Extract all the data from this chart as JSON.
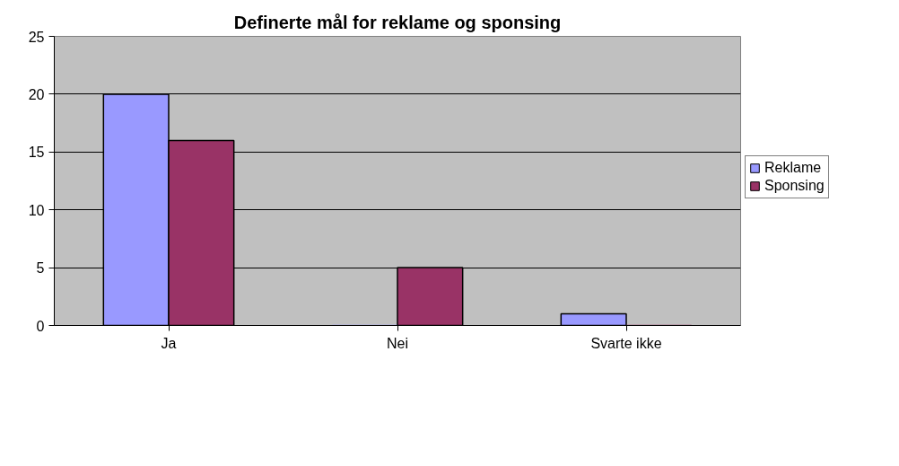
{
  "chart_data": {
    "type": "bar",
    "title": "Definerte mål for reklame og sponsing",
    "categories": [
      "Ja",
      "Nei",
      "Svarte ikke"
    ],
    "series": [
      {
        "name": "Reklame",
        "color": "#9999ff",
        "values": [
          20,
          0,
          1
        ]
      },
      {
        "name": "Sponsing",
        "color": "#993366",
        "values": [
          16,
          5,
          0
        ]
      }
    ],
    "ylim": [
      0,
      25
    ],
    "yticks": [
      0,
      5,
      10,
      15,
      20,
      25
    ],
    "grid": "y",
    "legend": "right"
  }
}
